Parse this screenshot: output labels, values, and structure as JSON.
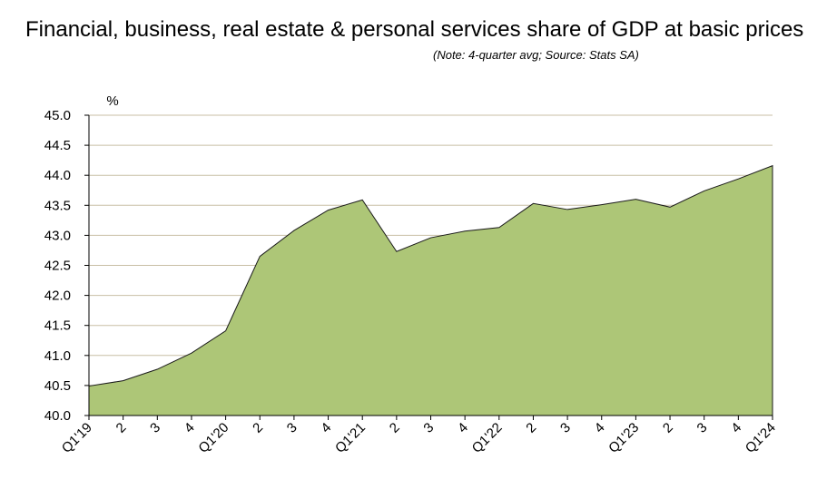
{
  "chart_data": {
    "type": "area",
    "title": "Financial, business, real estate & personal services share of GDP at basic prices",
    "subtitle": "(Note: 4-quarter avg; Source: Stats SA)",
    "ylabel": "%",
    "xlabel": "",
    "ylim": [
      40.0,
      45.0
    ],
    "ytick_labels": [
      "40.0",
      "40.5",
      "41.0",
      "41.5",
      "42.0",
      "42.5",
      "43.0",
      "43.5",
      "44.0",
      "44.5",
      "45.0"
    ],
    "categories": [
      "Q1'19",
      "2",
      "3",
      "4",
      "Q1'20",
      "2",
      "3",
      "4",
      "Q1'21",
      "2",
      "3",
      "4",
      "Q1'22",
      "2",
      "3",
      "4",
      "Q1'23",
      "2",
      "3",
      "4",
      "Q1'24"
    ],
    "values": [
      40.49,
      40.58,
      40.77,
      41.04,
      41.41,
      42.65,
      43.08,
      43.42,
      43.59,
      42.73,
      42.96,
      43.07,
      43.13,
      43.53,
      43.43,
      43.51,
      43.6,
      43.47,
      43.74,
      43.94,
      44.16
    ],
    "grid": true,
    "colors": {
      "fill": "#adc677",
      "stroke": "#1a1a1a",
      "grid": "#c8bfa5"
    }
  }
}
